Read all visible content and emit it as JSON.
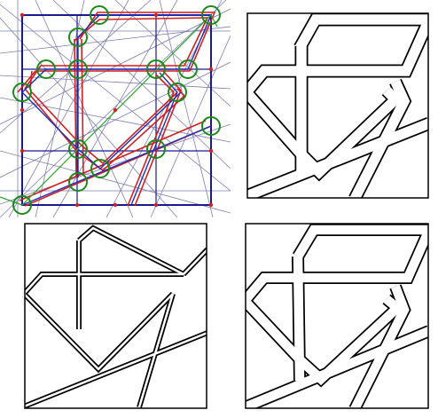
{
  "figure": {
    "panels": [
      {
        "id": "construction",
        "content": "construction-grid"
      },
      {
        "id": "interlace-wide",
        "content": "interlace-band-wide"
      },
      {
        "id": "interlace-thin",
        "content": "interlace-band-thin"
      },
      {
        "id": "interlace-medium",
        "content": "interlace-band-medium"
      }
    ],
    "colors": {
      "frame": "#1a1a8c",
      "grid_lines": "#7f7fb0",
      "red_strapwork": "#d11f1f",
      "blue_strapwork": "#1f2fb5",
      "green_circles": "#1a8a1a",
      "green_line": "#2da52d",
      "red_dots": "#cc2222",
      "band_stroke": "#000000",
      "background": "#ffffff"
    }
  }
}
